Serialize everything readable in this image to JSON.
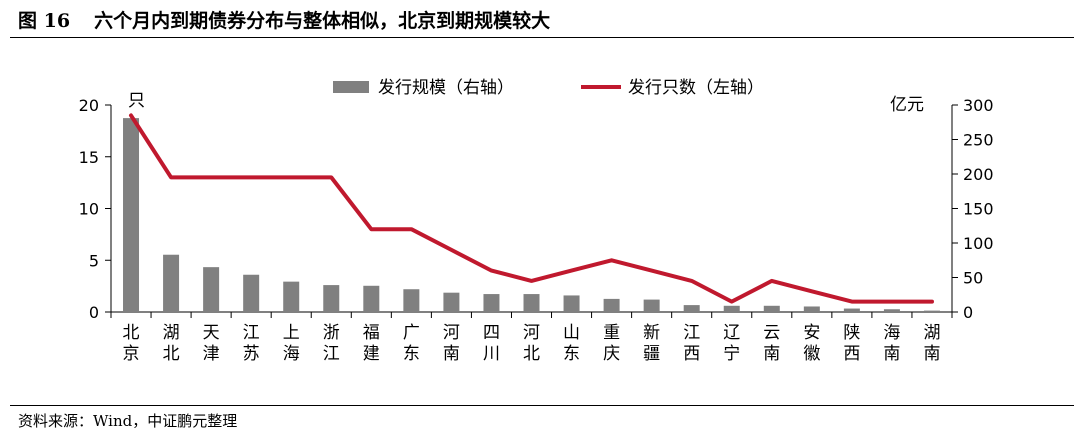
{
  "figure": {
    "number": "图 16",
    "title": "六个月内到期债券分布与整体相似，北京到期规模较大",
    "source": "资料来源：Wind，中证鹏元整理"
  },
  "chart_data": {
    "type": "bar",
    "categories": [
      "北京",
      "湖北",
      "天津",
      "江苏",
      "上海",
      "浙江",
      "福建",
      "广东",
      "河南",
      "四川",
      "河北",
      "山东",
      "重庆",
      "新疆",
      "江西",
      "辽宁",
      "云南",
      "安徽",
      "陕西",
      "海南",
      "湖南"
    ],
    "series": [
      {
        "name": "发行规模（右轴）",
        "type": "bar",
        "axis": "right",
        "color": "#808080",
        "values": [
          281,
          83,
          65,
          54,
          44,
          39,
          38,
          33,
          28,
          26,
          26,
          24,
          19,
          18,
          10,
          9,
          9,
          8,
          5,
          4,
          2
        ]
      },
      {
        "name": "发行只数（左轴）",
        "type": "line",
        "axis": "left",
        "color": "#c0192e",
        "values": [
          19,
          13,
          13,
          13,
          13,
          13,
          8,
          8,
          6,
          4,
          3,
          4,
          5,
          4,
          3,
          1,
          3,
          2,
          1,
          1,
          1
        ]
      }
    ],
    "y_left": {
      "unit": "只",
      "min": 0,
      "max": 20,
      "ticks": [
        0,
        5,
        10,
        15,
        20
      ]
    },
    "y_right": {
      "unit": "亿元",
      "min": 0,
      "max": 300,
      "ticks": [
        0,
        50,
        100,
        150,
        200,
        250,
        300
      ]
    },
    "legend_position": "top-center",
    "grid": false
  }
}
